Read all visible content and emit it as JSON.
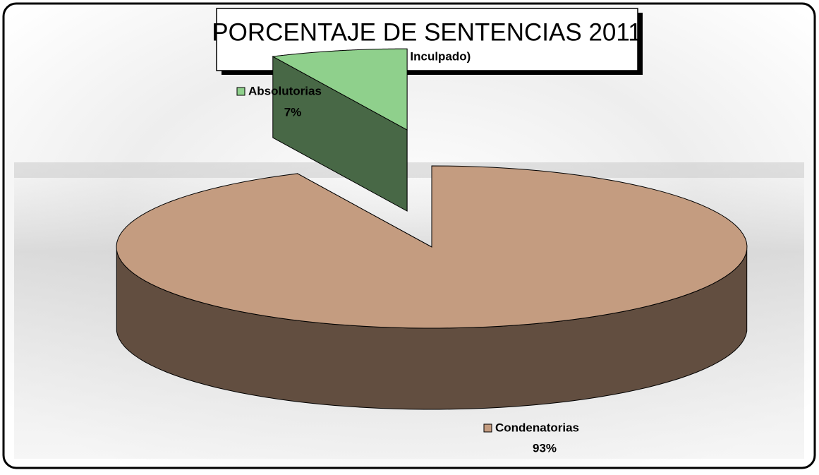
{
  "chart_data": {
    "type": "pie",
    "title": "PORCENTAJE DE SENTENCIAS 2011",
    "subtitle": "(Por Inculpado)",
    "categories": [
      "Absolutorias",
      "Condenatorias"
    ],
    "values": [
      7,
      93
    ],
    "value_labels": [
      "7%",
      "93%"
    ],
    "colors": [
      "#8fd08c",
      "#c49c80"
    ]
  }
}
